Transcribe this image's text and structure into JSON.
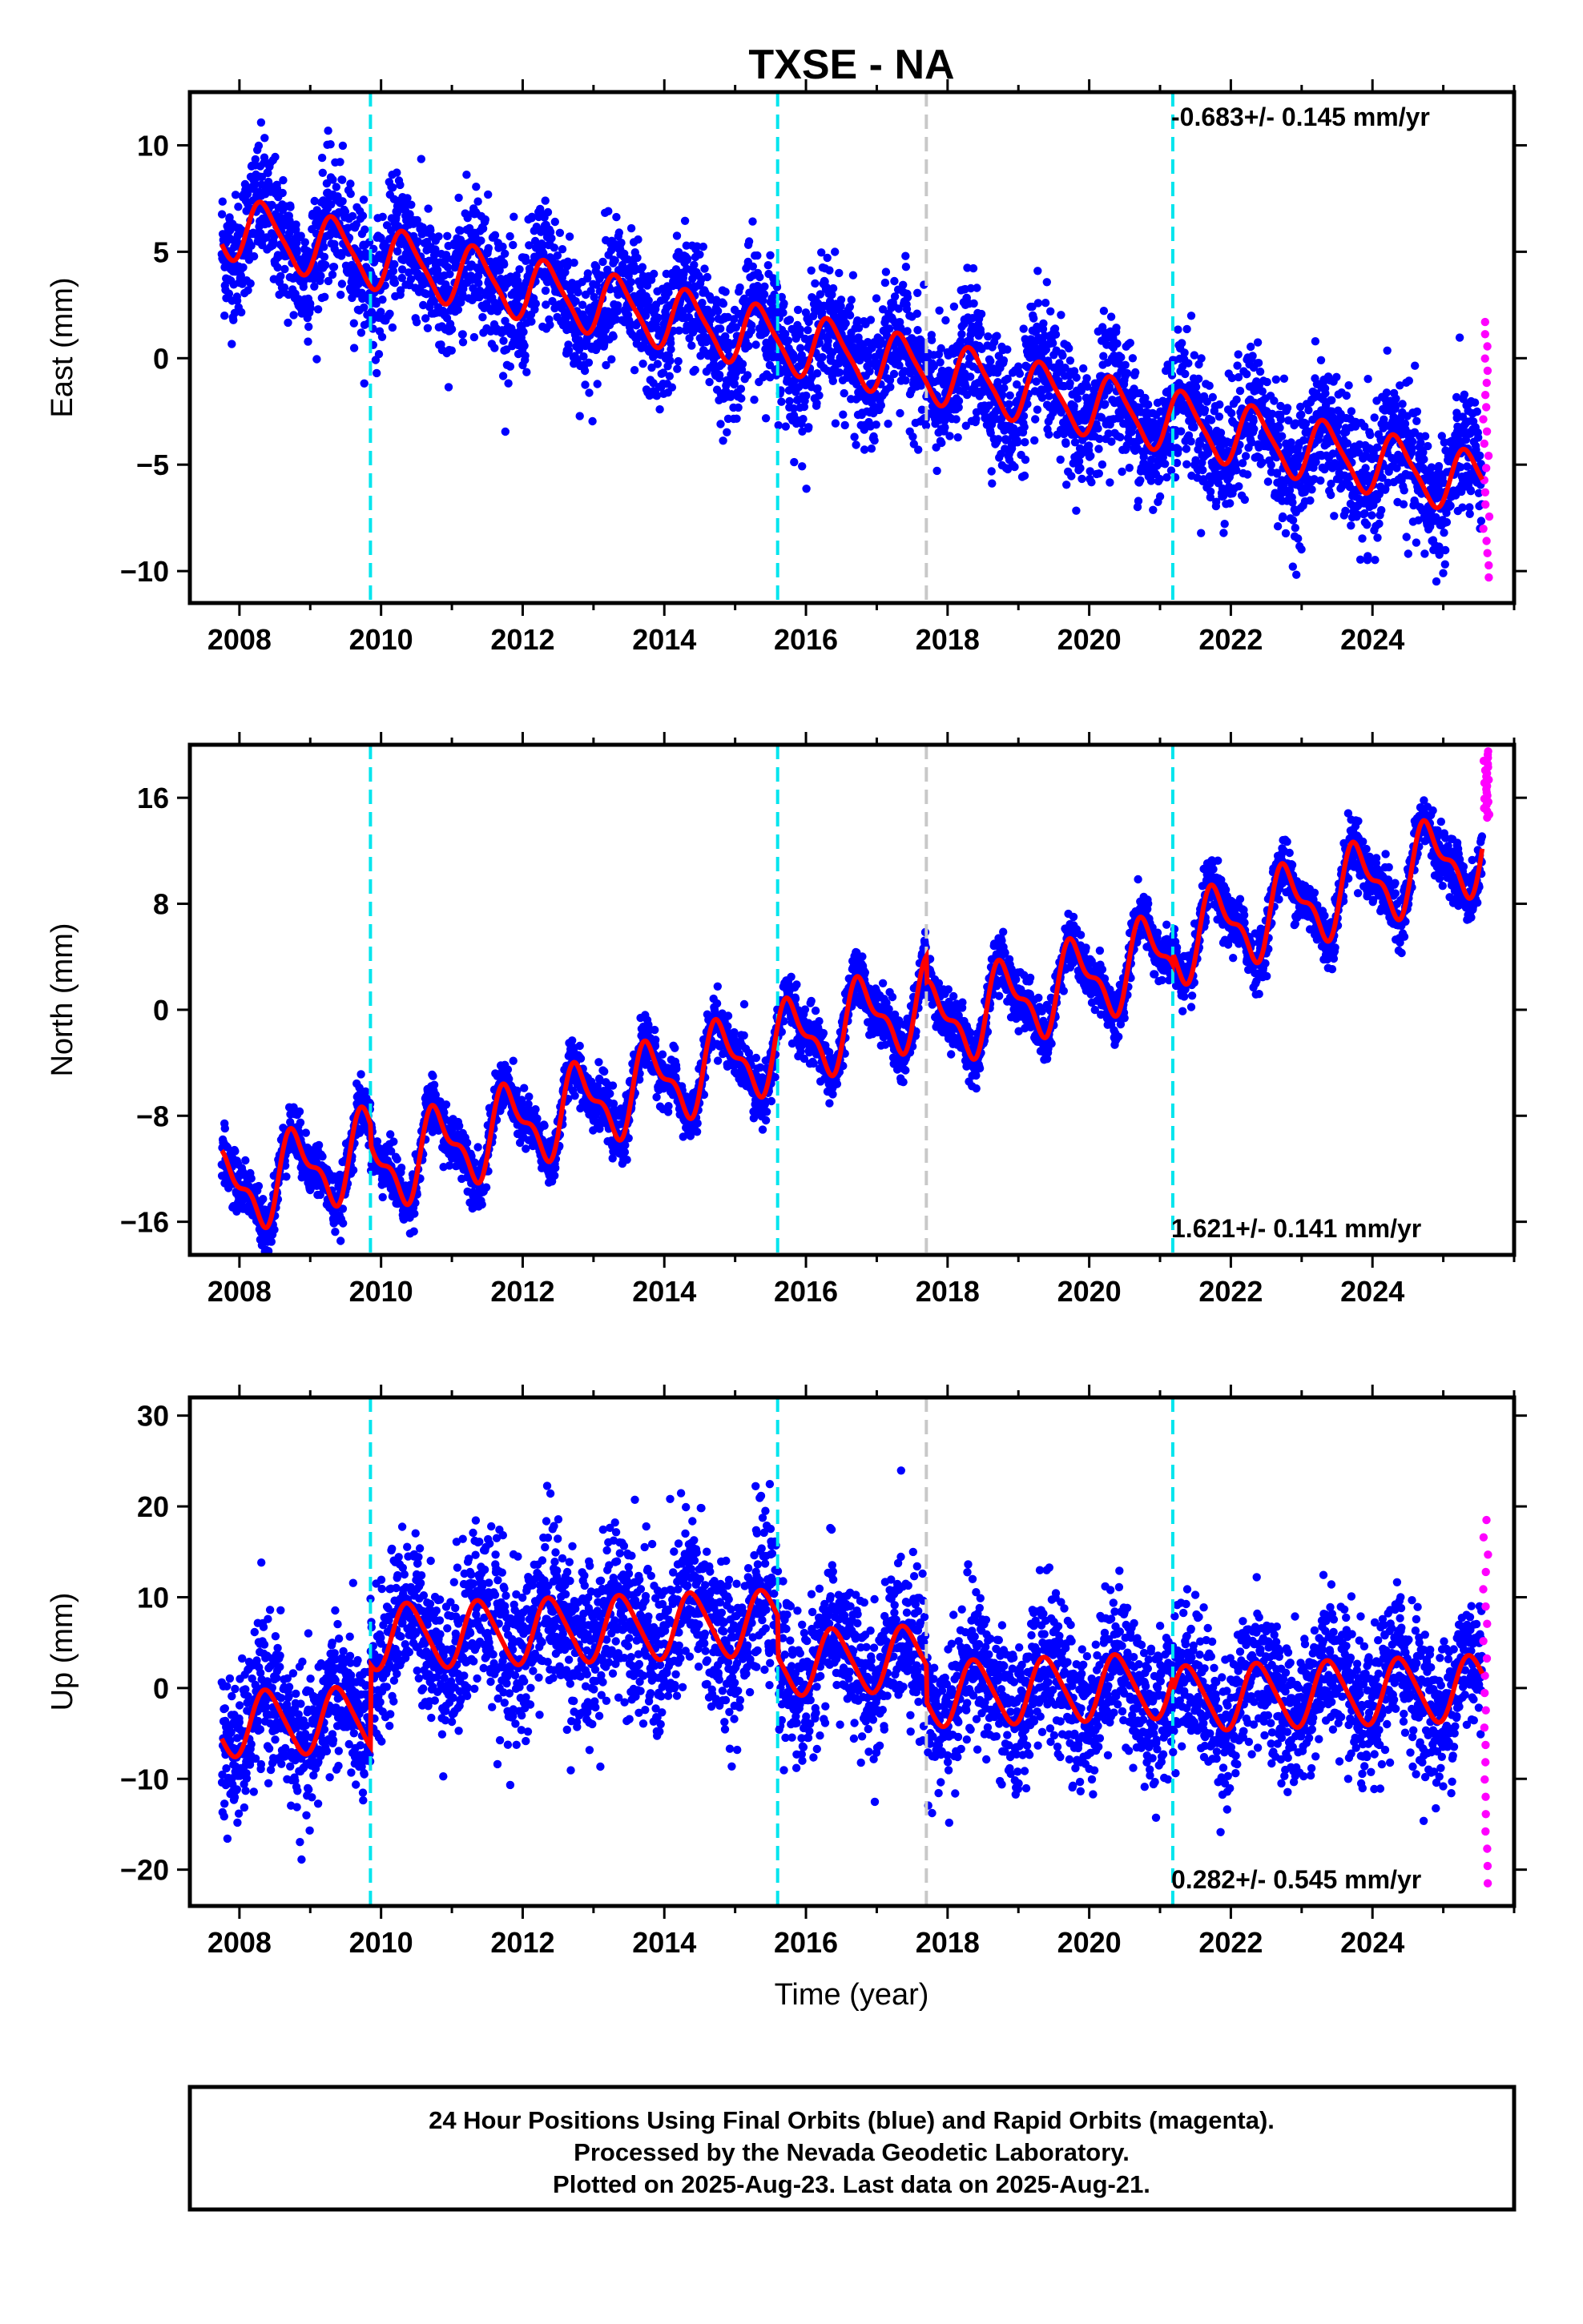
{
  "title": "TXSE - NA",
  "xlabel": "Time (year)",
  "footer": {
    "lines": [
      "24 Hour Positions Using Final Orbits (blue) and Rapid Orbits (magenta).",
      "Processed by the Nevada Geodetic Laboratory.",
      "Plotted on 2025-Aug-23. Last data on 2025-Aug-21."
    ]
  },
  "colors": {
    "final": "#0000ff",
    "rapid": "#ff00ff",
    "model": "#ff0000",
    "equipment_change": "#00e5ee",
    "earthquake": "#c8c8c8"
  },
  "chart_data": [
    {
      "type": "scatter",
      "id": "east",
      "ylabel": "East (mm)",
      "xlim": [
        2007.3,
        2026.0
      ],
      "ylim": [
        -11.5,
        12.5
      ],
      "xticks": [
        2008,
        2010,
        2012,
        2014,
        2016,
        2018,
        2020,
        2022,
        2024
      ],
      "yticks": [
        10,
        5,
        0,
        -5,
        -10
      ],
      "ytick_labels": [
        "10",
        "5",
        "0",
        "−5",
        "−10"
      ],
      "rate_text": "-0.683+/- 0.145 mm/yr",
      "rate_position": "top-right",
      "rate": -0.683,
      "intercept": 6.2,
      "annual_amp": 1.4,
      "annual_phase": 0.1,
      "semi_amp": 0.3,
      "scatter": 1.5,
      "offsets": [
        {
          "t": 2009.85,
          "dy": 0.0
        },
        {
          "t": 2015.6,
          "dy": 0.0
        },
        {
          "t": 2017.7,
          "dy": 0.0
        },
        {
          "t": 2021.18,
          "dy": 0.0
        }
      ],
      "start": 2007.75,
      "end_final": 2025.55,
      "end_rapid": 2025.64,
      "rapid_range": [
        -10.3,
        1.7
      ]
    },
    {
      "type": "scatter",
      "id": "north",
      "ylabel": "North (mm)",
      "xlim": [
        2007.3,
        2026.0
      ],
      "ylim": [
        -18.5,
        20.0
      ],
      "xticks": [
        2008,
        2010,
        2012,
        2014,
        2016,
        2018,
        2020,
        2022,
        2024
      ],
      "yticks": [
        16,
        8,
        0,
        -8,
        -16
      ],
      "ytick_labels": [
        "16",
        "8",
        "0",
        "−8",
        "−16"
      ],
      "rate_text": "1.621+/- 0.141 mm/yr",
      "rate_position": "bottom-right",
      "rate": 1.621,
      "intercept": -14.0,
      "annual_amp": 2.8,
      "annual_phase": 0.55,
      "semi_amp": 1.2,
      "scatter": 1.0,
      "offsets": [
        {
          "t": 2009.85,
          "dy": -1.5
        },
        {
          "t": 2015.6,
          "dy": 0.0
        },
        {
          "t": 2017.7,
          "dy": -2.0
        },
        {
          "t": 2021.18,
          "dy": 0.8
        }
      ],
      "start": 2007.75,
      "end_final": 2025.55,
      "end_rapid": 2025.64,
      "rapid_range": [
        14.5,
        19.5
      ]
    },
    {
      "type": "scatter",
      "id": "up",
      "ylabel": "Up (mm)",
      "xlim": [
        2007.3,
        2026.0
      ],
      "ylim": [
        -24.0,
        32.0
      ],
      "xticks": [
        2008,
        2010,
        2012,
        2014,
        2016,
        2018,
        2020,
        2022,
        2024
      ],
      "yticks": [
        30,
        20,
        10,
        0,
        -10,
        -20
      ],
      "ytick_labels": [
        "30",
        "20",
        "10",
        "0",
        "−10",
        "−20"
      ],
      "rate_text": "0.282+/- 0.545 mm/yr",
      "rate_position": "bottom-right",
      "rate": 0.282,
      "intercept": -4.0,
      "annual_amp": 3.5,
      "annual_phase": 0.15,
      "semi_amp": 0.5,
      "scatter": 4.0,
      "offsets": [
        {
          "t": 2009.85,
          "dy": 9.0
        },
        {
          "t": 2015.6,
          "dy": -4.5
        },
        {
          "t": 2017.7,
          "dy": -4.0
        },
        {
          "t": 2021.18,
          "dy": -1.5
        }
      ],
      "start": 2007.75,
      "end_final": 2025.55,
      "end_rapid": 2025.64,
      "rapid_range": [
        -21.5,
        18.5
      ]
    }
  ],
  "events": {
    "equipment_change": [
      2009.85,
      2015.6,
      2021.18
    ],
    "earthquake": [
      2017.7
    ]
  }
}
